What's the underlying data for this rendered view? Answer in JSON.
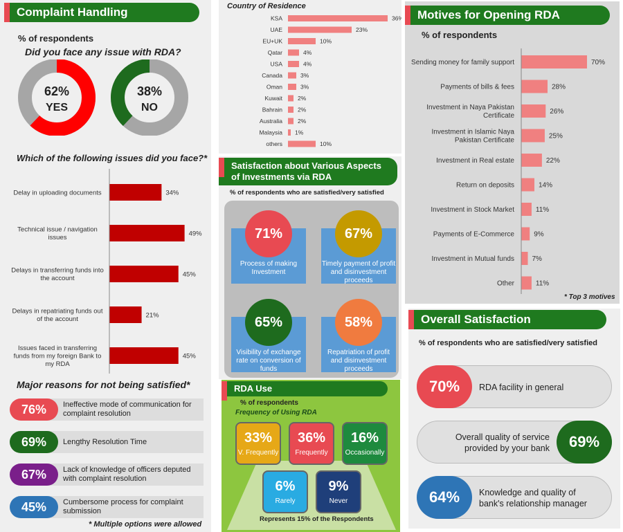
{
  "complaint": {
    "title": "Complaint Handling",
    "pct_label": "% of respondents",
    "question": "Did you face any issue with RDA?",
    "yes_pct": "62%",
    "yes_label": "YES",
    "yes_value": 62,
    "no_pct": "38%",
    "no_label": "NO",
    "no_value": 38,
    "issues_question": "Which of the following issues did you face?*",
    "reasons_title": "Major reasons for not being satisfied*",
    "reasons": [
      {
        "pct": "76%",
        "text": "Ineffective mode of communication for complaint resolution",
        "color": "#e84a52"
      },
      {
        "pct": "69%",
        "text": "Lengthy Resolution Time",
        "color": "#1e6b1e"
      },
      {
        "pct": "67%",
        "text": "Lack of knowledge of officers deputed with complaint resolution",
        "color": "#7a1f8a"
      },
      {
        "pct": "45%",
        "text": "Cumbersome process for complaint submission",
        "color": "#2e75b6"
      }
    ],
    "footnote": "* Multiple options were allowed"
  },
  "chart_data": [
    {
      "type": "bar",
      "orientation": "horizontal",
      "title": "Which of the following issues did you face?*",
      "categories": [
        "Delay in uploading documents",
        "Technical issue / navigation issues",
        "Delays in transferring funds into the account",
        "Delays in repatriating funds out of the account",
        "Issues faced in transferring funds from my foreign Bank to my RDA"
      ],
      "category_lines": [
        [
          "Delay in uploading documents"
        ],
        [
          "Technical issue / navigation",
          "issues"
        ],
        [
          "Delays in transferring funds into",
          "the account"
        ],
        [
          "Delays in repatriating funds out",
          "of the account"
        ],
        [
          "Issues faced in transferring",
          "funds from my foreign Bank to",
          "my RDA"
        ]
      ],
      "values": [
        34,
        49,
        45,
        21,
        45
      ],
      "labels": [
        "34%",
        "49%",
        "45%",
        "21%",
        "45%"
      ],
      "unit": "%",
      "xlim": [
        0,
        60
      ],
      "color": "#c00000"
    },
    {
      "type": "bar",
      "orientation": "horizontal",
      "title": "Country of Residence",
      "categories": [
        "KSA",
        "UAE",
        "EU+UK",
        "Qatar",
        "USA",
        "Canada",
        "Oman",
        "Kuwait",
        "Bahrain",
        "Australia",
        "Malaysia",
        "others"
      ],
      "values": [
        36,
        23,
        10,
        4,
        4,
        3,
        3,
        2,
        2,
        2,
        1,
        10
      ],
      "labels": [
        "36%",
        "23%",
        "10%",
        "4%",
        "4%",
        "3%",
        "3%",
        "2%",
        "2%",
        "2%",
        "1%",
        "10%"
      ],
      "unit": "%",
      "xlim": [
        0,
        36
      ],
      "color": "#f08080"
    },
    {
      "type": "bar",
      "orientation": "horizontal",
      "title": "Motives for Opening RDA",
      "categories": [
        "Sending money for family support",
        "Payments of bills & fees",
        "Investment in Naya Pakistan Certificate",
        "Investment in Islamic Naya Pakistan Certificate",
        "Investment in Real estate",
        "Return on deposits",
        "Investment in Stock Market",
        "Payments of E-Commerce",
        "Investment in Mutual funds",
        "Other"
      ],
      "category_lines": [
        [
          "Sending money for family support"
        ],
        [
          "Payments of bills & fees"
        ],
        [
          "Investment in Naya Pakistan",
          "Certificate"
        ],
        [
          "Investment in Islamic Naya",
          "Pakistan Certificate"
        ],
        [
          "Investment in Real estate"
        ],
        [
          "Return on deposits"
        ],
        [
          "Investment in Stock Market"
        ],
        [
          "Payments of E-Commerce"
        ],
        [
          "Investment in Mutual funds"
        ],
        [
          "Other"
        ]
      ],
      "values": [
        70,
        28,
        26,
        25,
        22,
        14,
        11,
        9,
        7,
        11
      ],
      "labels": [
        "70%",
        "28%",
        "26%",
        "25%",
        "22%",
        "14%",
        "11%",
        "9%",
        "7%",
        "11%"
      ],
      "unit": "%",
      "xlim": [
        0,
        70
      ],
      "color": "#f08080"
    }
  ],
  "country": {
    "title": "Country of Residence"
  },
  "satisfaction": {
    "title_l1": "Satisfaction about Various Aspects",
    "title_l2": "of Investments via RDA",
    "subtitle": "% of respondents who are satisfied/very satisfied",
    "items": [
      {
        "pct": "71%",
        "text": "Process of making Investment",
        "color": "#e84a52"
      },
      {
        "pct": "67%",
        "text": "Timely payment of profit and disinvestment proceeds",
        "color": "#c49a00"
      },
      {
        "pct": "65%",
        "text": "Visibility of exchange rate on conversion of funds",
        "color": "#1e6b1e"
      },
      {
        "pct": "58%",
        "text": "Repatriation of profit and disinvestment proceeds",
        "color": "#f07b3f"
      }
    ]
  },
  "rda_use": {
    "title": "RDA Use",
    "pct_label": "% of respondents",
    "freq_label": "Frequency of Using RDA",
    "items": [
      {
        "pct": "33%",
        "label": "V. Frequently",
        "color": "#e6a817"
      },
      {
        "pct": "36%",
        "label": "Frequently",
        "color": "#e84a52"
      },
      {
        "pct": "16%",
        "label": "Occasionally",
        "color": "#1e8a3e"
      },
      {
        "pct": "6%",
        "label": "Rarely",
        "color": "#29abe2"
      },
      {
        "pct": "9%",
        "label": "Never",
        "color": "#1f3f7a"
      }
    ],
    "footnote": "Represents 15% of the Respondents"
  },
  "motives": {
    "title": "Motives for Opening RDA",
    "pct_label": "% of respondents",
    "footnote": "* Top 3 motives"
  },
  "overall": {
    "title": "Overall Satisfaction",
    "subtitle": "% of respondents who are satisfied/very satisfied",
    "items": [
      {
        "pct": "70%",
        "text": "RDA facility in general",
        "color": "#e84a52"
      },
      {
        "pct": "69%",
        "text": "Overall quality of service provided by your bank",
        "color": "#1e6b1e"
      },
      {
        "pct": "64%",
        "text": "Knowledge and quality of bank's relationship manager",
        "color": "#2e75b6"
      }
    ]
  }
}
